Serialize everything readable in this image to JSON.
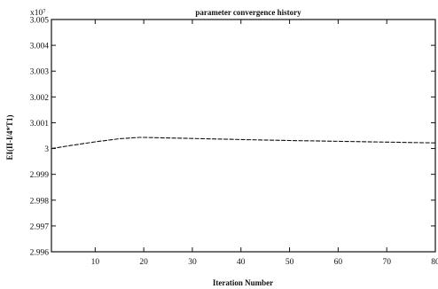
{
  "chart_data": {
    "type": "line",
    "title": "parameter convergence history",
    "xlabel": "Iteration Number",
    "ylabel": "EI(II-I/4*T1)",
    "y_scale_note": "x10⁷",
    "xlim": [
      1,
      80
    ],
    "ylim": [
      2.996,
      3.005
    ],
    "x_ticks": [
      10,
      20,
      30,
      40,
      50,
      60,
      70,
      80
    ],
    "y_ticks": [
      2.996,
      2.997,
      2.998,
      2.999,
      3,
      3.001,
      3.002,
      3.003,
      3.004,
      3.005
    ],
    "y_tick_labels": [
      "2.996",
      "2.997",
      "2.998",
      "2.999",
      "3",
      "3.001",
      "3.002",
      "3.003",
      "3.004",
      "3.005"
    ],
    "grid": false,
    "series": [
      {
        "x": [
          1,
          5,
          10,
          15,
          19,
          20,
          25,
          30,
          40,
          50,
          60,
          70,
          80
        ],
        "y": [
          3.0,
          3.00012,
          3.00026,
          3.00038,
          3.00043,
          3.00043,
          3.00041,
          3.00039,
          3.00035,
          3.00031,
          3.00028,
          3.00025,
          3.00022
        ]
      }
    ]
  }
}
